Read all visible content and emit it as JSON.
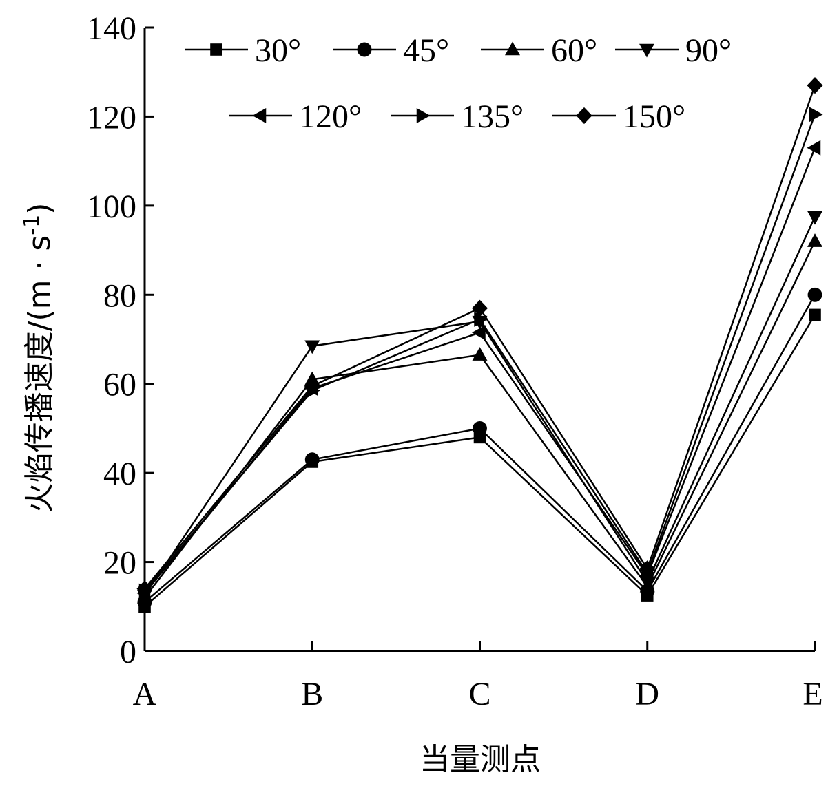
{
  "chart_data": {
    "type": "line",
    "categories": [
      "A",
      "B",
      "C",
      "D",
      "E"
    ],
    "xlabel": "当量测点",
    "ylabel": "火焰传播速度/(m · s",
    "ylabel_sup": "-1",
    "ylabel_close": ")",
    "ylim": [
      0,
      140
    ],
    "yticks": [
      "0",
      "20",
      "40",
      "60",
      "80",
      "100",
      "120",
      "140"
    ],
    "grid": false,
    "legend_position": "top",
    "series": [
      {
        "name": "30°",
        "marker": "square",
        "values": [
          10,
          42.5,
          48,
          12.5,
          75.5
        ]
      },
      {
        "name": "45°",
        "marker": "circle",
        "values": [
          11,
          43,
          50,
          13.5,
          80
        ]
      },
      {
        "name": "60°",
        "marker": "triangle-up",
        "values": [
          12,
          61,
          66.5,
          14.5,
          92
        ]
      },
      {
        "name": "90°",
        "marker": "triangle-down",
        "values": [
          12.5,
          68.5,
          74,
          15.5,
          97.5
        ]
      },
      {
        "name": "120°",
        "marker": "triangle-left",
        "values": [
          13,
          59,
          71.5,
          17,
          113
        ]
      },
      {
        "name": "135°",
        "marker": "triangle-right",
        "values": [
          13.5,
          58.5,
          74.5,
          17.5,
          120.5
        ]
      },
      {
        "name": "150°",
        "marker": "diamond",
        "values": [
          14,
          59.5,
          77,
          18.5,
          127
        ]
      }
    ]
  }
}
